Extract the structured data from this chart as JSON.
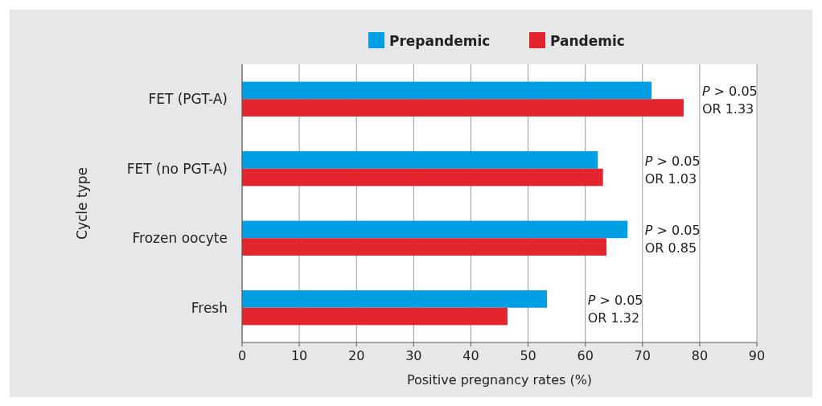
{
  "chart_data": {
    "type": "bar",
    "orientation": "horizontal",
    "categories": [
      "FET (PGT-A)",
      "FET (no PGT-A)",
      "Frozen oocyte",
      "Fresh"
    ],
    "series": [
      {
        "name": "Prepandemic",
        "color": "#009fe3",
        "values": [
          71.6,
          62.2,
          67.4,
          53.3
        ]
      },
      {
        "name": "Pandemic",
        "color": "#e3262d",
        "values": [
          77.2,
          63.1,
          63.7,
          46.4
        ]
      }
    ],
    "xlim": [
      0,
      90
    ],
    "xticks": [
      0,
      10,
      20,
      30,
      40,
      50,
      60,
      70,
      80,
      90
    ],
    "xlabel": "Positive pregnancy rates (%)",
    "ylabel": "Cycle type",
    "grid": "x",
    "legend": "top",
    "annotations": [
      "P > 0.05\nOR 1.33",
      "P > 0.05\nOR 1.03",
      "P > 0.05\nOR 0.85",
      "P > 0.05\nOR 1.32"
    ]
  }
}
